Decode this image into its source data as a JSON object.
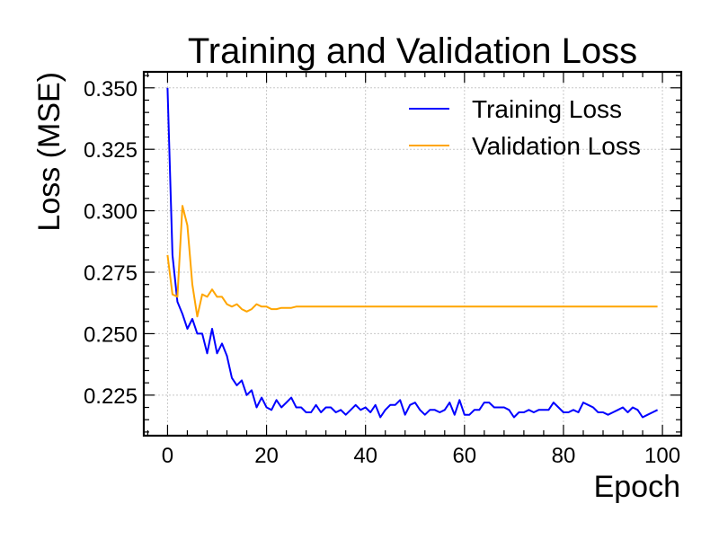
{
  "chart_data": {
    "type": "line",
    "title": "Training and Validation Loss",
    "xlabel": "Epoch",
    "ylabel": "Loss (MSE)",
    "xlim": [
      -4.8,
      103.8
    ],
    "ylim": [
      0.2085,
      0.3565
    ],
    "xticks": [
      0,
      20,
      40,
      60,
      80,
      100
    ],
    "yticks": [
      0.225,
      0.25,
      0.275,
      0.3,
      0.325,
      0.35
    ],
    "xtick_labels": [
      "0",
      "20",
      "40",
      "60",
      "80",
      "100"
    ],
    "ytick_labels": [
      "0.225",
      "0.250",
      "0.275",
      "0.300",
      "0.325",
      "0.350"
    ],
    "grid": true,
    "legend": "top-right",
    "x": [
      0,
      1,
      2,
      3,
      4,
      5,
      6,
      7,
      8,
      9,
      10,
      11,
      12,
      13,
      14,
      15,
      16,
      17,
      18,
      19,
      20,
      21,
      22,
      23,
      24,
      25,
      26,
      27,
      28,
      29,
      30,
      31,
      32,
      33,
      34,
      35,
      36,
      37,
      38,
      39,
      40,
      41,
      42,
      43,
      44,
      45,
      46,
      47,
      48,
      49,
      50,
      51,
      52,
      53,
      54,
      55,
      56,
      57,
      58,
      59,
      60,
      61,
      62,
      63,
      64,
      65,
      66,
      67,
      68,
      69,
      70,
      71,
      72,
      73,
      74,
      75,
      76,
      77,
      78,
      79,
      80,
      81,
      82,
      83,
      84,
      85,
      86,
      87,
      88,
      89,
      90,
      91,
      92,
      93,
      94,
      95,
      96,
      97,
      98,
      99
    ],
    "series": [
      {
        "name": "Training Loss",
        "color": "#0000ff",
        "values": [
          0.35,
          0.282,
          0.263,
          0.258,
          0.252,
          0.256,
          0.25,
          0.25,
          0.242,
          0.252,
          0.242,
          0.246,
          0.241,
          0.232,
          0.229,
          0.231,
          0.225,
          0.227,
          0.22,
          0.224,
          0.22,
          0.219,
          0.223,
          0.22,
          0.222,
          0.224,
          0.22,
          0.22,
          0.218,
          0.218,
          0.221,
          0.218,
          0.22,
          0.22,
          0.218,
          0.219,
          0.217,
          0.219,
          0.221,
          0.219,
          0.22,
          0.218,
          0.221,
          0.216,
          0.219,
          0.221,
          0.221,
          0.223,
          0.217,
          0.221,
          0.222,
          0.219,
          0.217,
          0.219,
          0.219,
          0.218,
          0.219,
          0.222,
          0.217,
          0.223,
          0.217,
          0.217,
          0.219,
          0.219,
          0.222,
          0.222,
          0.22,
          0.22,
          0.22,
          0.219,
          0.216,
          0.218,
          0.218,
          0.219,
          0.218,
          0.219,
          0.219,
          0.219,
          0.222,
          0.22,
          0.218,
          0.218,
          0.219,
          0.218,
          0.222,
          0.221,
          0.22,
          0.218,
          0.218,
          0.217,
          0.218,
          0.219,
          0.22,
          0.218,
          0.22,
          0.219,
          0.216,
          0.217,
          0.218,
          0.219
        ]
      },
      {
        "name": "Validation Loss",
        "color": "#ffa500",
        "values": [
          0.282,
          0.266,
          0.265,
          0.302,
          0.294,
          0.27,
          0.257,
          0.266,
          0.265,
          0.268,
          0.265,
          0.265,
          0.262,
          0.261,
          0.262,
          0.26,
          0.259,
          0.26,
          0.262,
          0.261,
          0.261,
          0.26,
          0.26,
          0.2605,
          0.2605,
          0.2605,
          0.261,
          0.261,
          0.261,
          0.261,
          0.261,
          0.261,
          0.261,
          0.261,
          0.261,
          0.261,
          0.261,
          0.261,
          0.261,
          0.261,
          0.261,
          0.261,
          0.261,
          0.261,
          0.261,
          0.261,
          0.261,
          0.261,
          0.261,
          0.261,
          0.261,
          0.261,
          0.261,
          0.261,
          0.261,
          0.261,
          0.261,
          0.261,
          0.261,
          0.261,
          0.261,
          0.261,
          0.261,
          0.261,
          0.261,
          0.261,
          0.261,
          0.261,
          0.261,
          0.261,
          0.261,
          0.261,
          0.261,
          0.261,
          0.261,
          0.261,
          0.261,
          0.261,
          0.261,
          0.261,
          0.261,
          0.261,
          0.261,
          0.261,
          0.261,
          0.261,
          0.261,
          0.261,
          0.261,
          0.261,
          0.261,
          0.261,
          0.261,
          0.261,
          0.261,
          0.261,
          0.261,
          0.261,
          0.261,
          0.261
        ]
      }
    ]
  }
}
